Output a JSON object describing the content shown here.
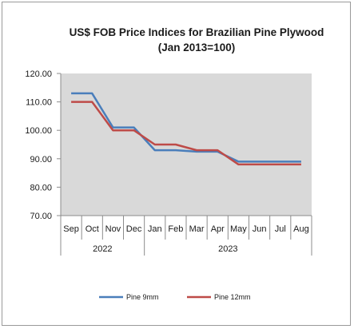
{
  "chart_data": {
    "type": "line",
    "title": "US$ FOB Price Indices for Brazilian Pine Plywood",
    "subtitle": "(Jan 2013=100)",
    "categories": [
      "Sep",
      "Oct",
      "Nov",
      "Dec",
      "Jan",
      "Feb",
      "Mar",
      "Apr",
      "May",
      "Jun",
      "Jul",
      "Aug"
    ],
    "year_groups": [
      {
        "label": "2022",
        "start": 0,
        "count": 4
      },
      {
        "label": "2023",
        "start": 4,
        "count": 8
      }
    ],
    "series": [
      {
        "name": "Pine 9mm",
        "color": "#4a7ebb",
        "values": [
          113,
          113,
          101,
          101,
          93,
          93,
          92.5,
          92.5,
          89,
          89,
          89,
          89
        ]
      },
      {
        "name": "Pine 12mm",
        "color": "#be4b48",
        "values": [
          110,
          110,
          100,
          100,
          95,
          95,
          93,
          93,
          88,
          88,
          88,
          88
        ]
      }
    ],
    "ylim": [
      70,
      120
    ],
    "yticks": [
      "70.00",
      "80.00",
      "90.00",
      "100.00",
      "110.00",
      "120.00"
    ],
    "grid": false,
    "legend_position": "bottom",
    "plot_background": "#d9d9d9"
  }
}
